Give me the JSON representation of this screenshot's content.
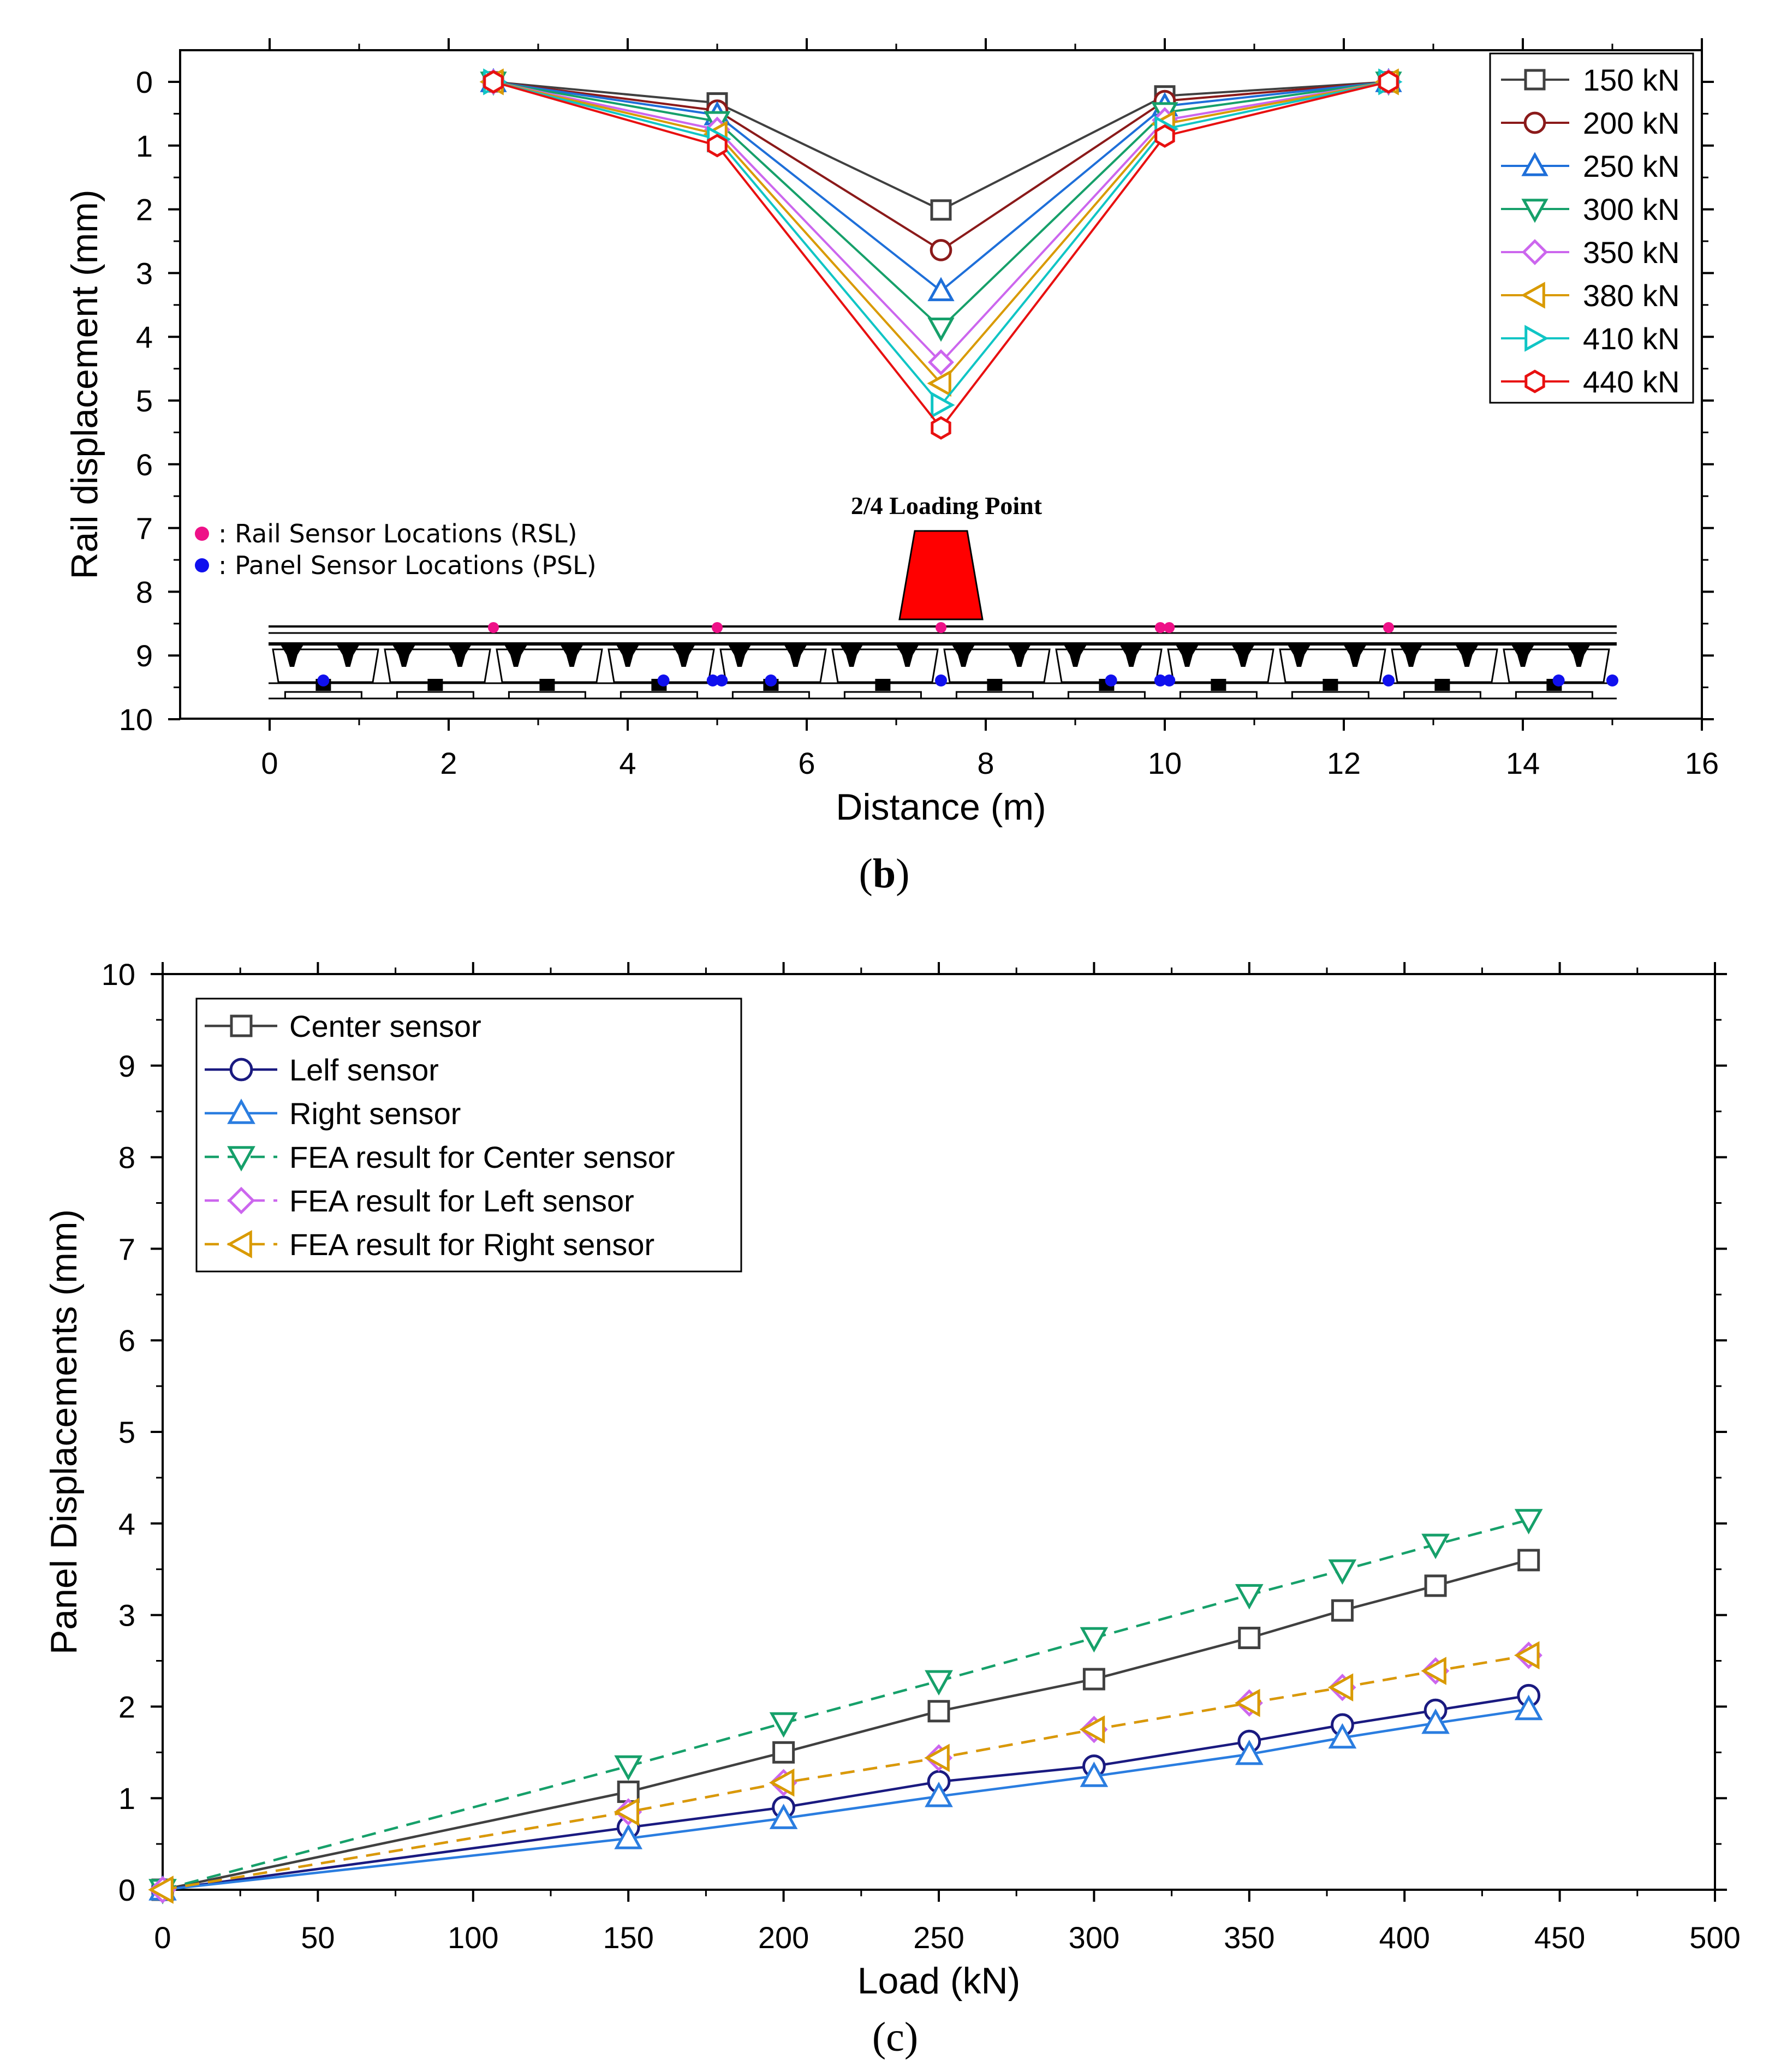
{
  "chart_data": [
    {
      "type": "line",
      "panel": "b",
      "caption_letter": "b",
      "xlabel": "Distance (m)",
      "ylabel": "Rail displacement (mm)",
      "xlim": [
        -1,
        16
      ],
      "ylim": [
        0,
        10
      ],
      "y_inverted": true,
      "x_ticks": [
        0,
        2,
        4,
        6,
        8,
        10,
        12,
        14,
        16
      ],
      "y_ticks": [
        0,
        1,
        2,
        3,
        4,
        5,
        6,
        7,
        8,
        9,
        10
      ],
      "x": [
        2.5,
        5.0,
        7.5,
        10.0,
        12.5
      ],
      "series": [
        {
          "name": "150 kN",
          "color": "#404040",
          "marker": "square",
          "values": [
            0,
            0.33,
            2.01,
            0.22,
            0
          ]
        },
        {
          "name": "200 kN",
          "color": "#8B1A1A",
          "marker": "circle",
          "values": [
            0,
            0.45,
            2.64,
            0.3,
            0
          ]
        },
        {
          "name": "250 kN",
          "color": "#1E6FD9",
          "marker": "triangle-up",
          "values": [
            0,
            0.52,
            3.28,
            0.38,
            0
          ]
        },
        {
          "name": "300 kN",
          "color": "#16A06A",
          "marker": "triangle-down",
          "values": [
            0,
            0.62,
            3.86,
            0.48,
            0
          ]
        },
        {
          "name": "350 kN",
          "color": "#CC66EE",
          "marker": "diamond",
          "values": [
            0,
            0.75,
            4.4,
            0.6,
            0
          ]
        },
        {
          "name": "380 kN",
          "color": "#D99A00",
          "marker": "triangle-left",
          "values": [
            0,
            0.82,
            4.73,
            0.66,
            0
          ]
        },
        {
          "name": "410 kN",
          "color": "#10C5C5",
          "marker": "triangle-right",
          "values": [
            0,
            0.9,
            5.07,
            0.74,
            0
          ]
        },
        {
          "name": "440 kN",
          "color": "#E81010",
          "marker": "hexagon",
          "values": [
            0,
            1.0,
            5.43,
            0.85,
            0
          ]
        }
      ],
      "legend_position": "top-right",
      "annotations": {
        "loading_point": "2/4 Loading Point",
        "rsl_label": ": Rail Sensor Locations (RSL)",
        "psl_label": ": Panel Sensor Locations (PSL)",
        "rsl_color": "#EE1188",
        "psl_color": "#1010EE",
        "load_color": "#FF0000",
        "rail_sensor_x": [
          2.5,
          5.0,
          7.5,
          9.95,
          10.05,
          12.5
        ],
        "panel_sensor_x": [
          0.6,
          4.4,
          4.95,
          5.05,
          5.6,
          7.5,
          9.4,
          9.95,
          10.05,
          12.5,
          14.4,
          15.0
        ]
      }
    },
    {
      "type": "line",
      "panel": "c",
      "caption_letter": "c",
      "xlabel": "Load (kN)",
      "ylabel": "Panel Displacements (mm)",
      "xlim": [
        0,
        500
      ],
      "ylim": [
        0,
        10
      ],
      "x_ticks": [
        0,
        50,
        100,
        150,
        200,
        250,
        300,
        350,
        400,
        450,
        500
      ],
      "y_ticks": [
        0,
        1,
        2,
        3,
        4,
        5,
        6,
        7,
        8,
        9,
        10
      ],
      "x": [
        0,
        150,
        200,
        250,
        300,
        350,
        380,
        410,
        440
      ],
      "series": [
        {
          "name": "Center sensor",
          "color": "#404040",
          "marker": "square",
          "dashed": false,
          "values": [
            0,
            1.07,
            1.5,
            1.95,
            2.3,
            2.75,
            3.05,
            3.32,
            3.6
          ]
        },
        {
          "name": "Lelf sensor",
          "color": "#1A1A80",
          "marker": "circle",
          "dashed": false,
          "values": [
            0,
            0.68,
            0.9,
            1.18,
            1.35,
            1.62,
            1.8,
            1.96,
            2.12
          ]
        },
        {
          "name": "Right sensor",
          "color": "#2A7DE0",
          "marker": "triangle-up",
          "dashed": false,
          "values": [
            0,
            0.56,
            0.78,
            1.02,
            1.24,
            1.48,
            1.66,
            1.82,
            1.97
          ]
        },
        {
          "name": "FEA result for Center sensor",
          "color": "#16A06A",
          "marker": "triangle-down",
          "dashed": true,
          "values": [
            0,
            1.35,
            1.82,
            2.28,
            2.75,
            3.22,
            3.49,
            3.77,
            4.04
          ]
        },
        {
          "name": "FEA result for Left sensor",
          "color": "#CC66EE",
          "marker": "diamond",
          "dashed": true,
          "values": [
            0,
            0.85,
            1.17,
            1.44,
            1.75,
            2.04,
            2.21,
            2.39,
            2.56
          ]
        },
        {
          "name": "FEA result for Right sensor",
          "color": "#D99A00",
          "marker": "triangle-left",
          "dashed": true,
          "values": [
            0,
            0.85,
            1.17,
            1.44,
            1.75,
            2.04,
            2.21,
            2.39,
            2.56
          ]
        }
      ],
      "legend_position": "top-left"
    }
  ]
}
